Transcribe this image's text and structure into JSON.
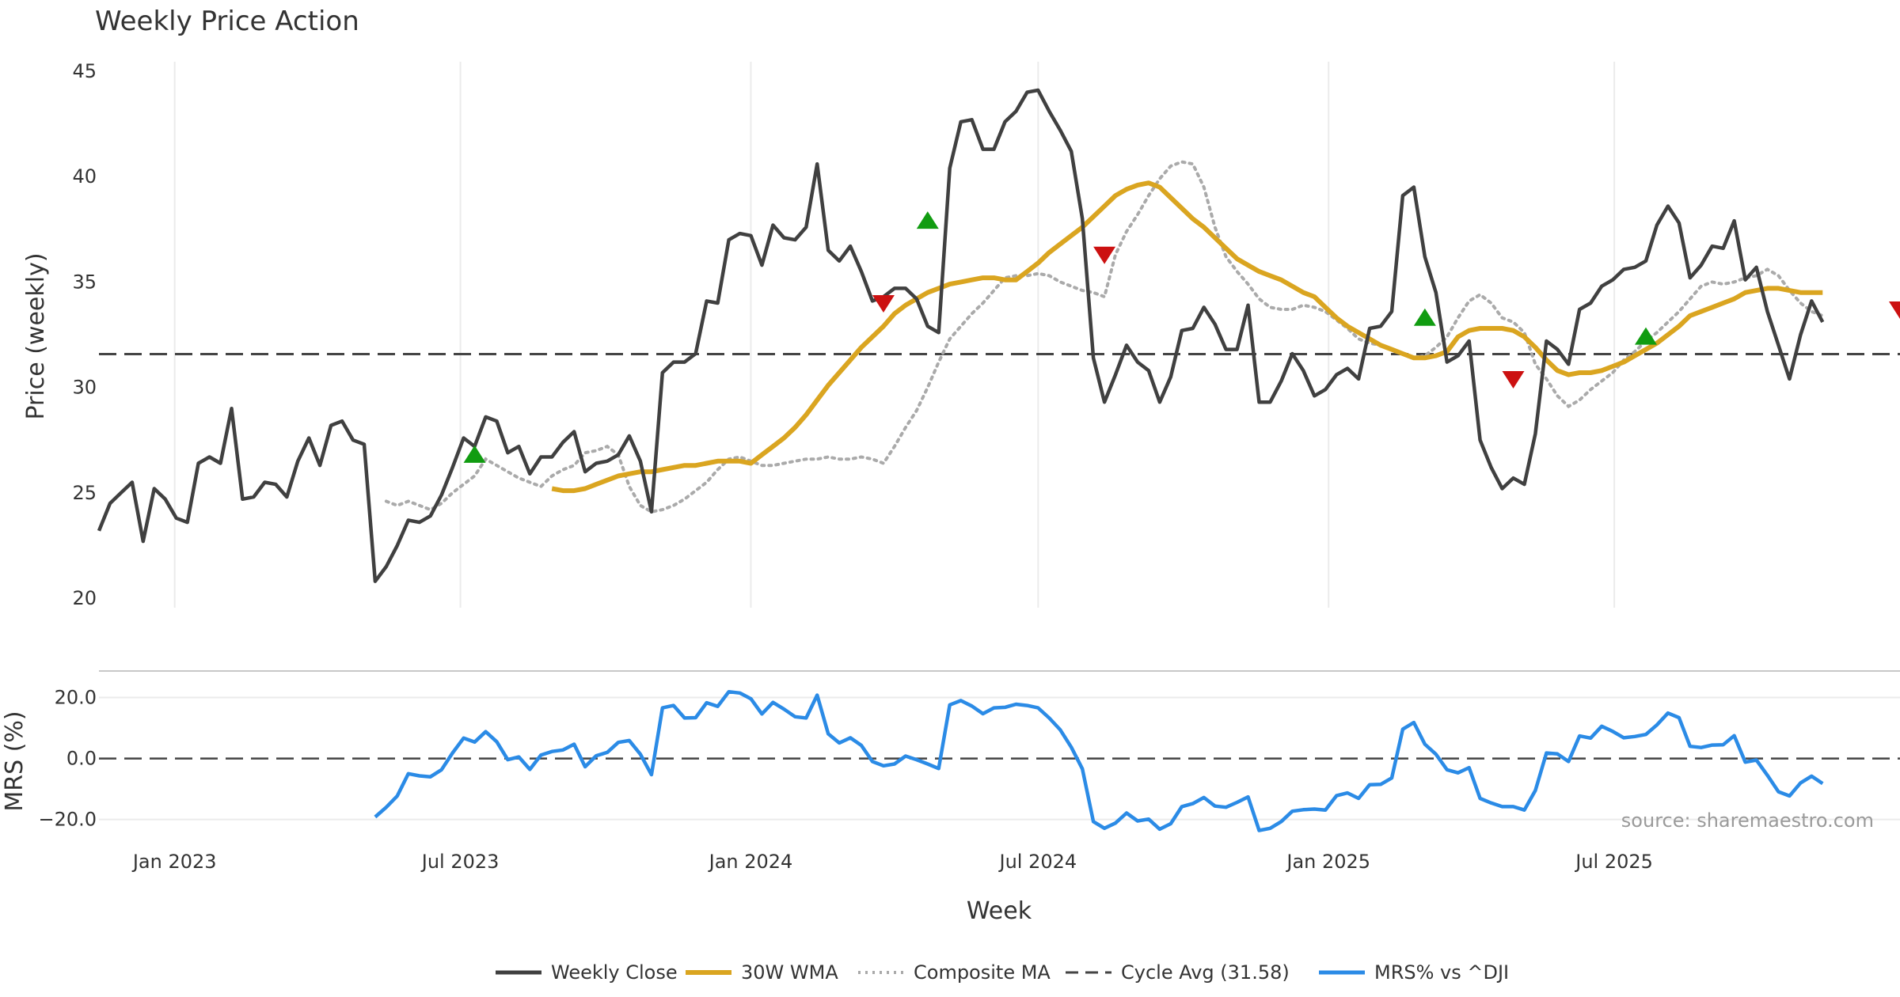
{
  "chart_data": {
    "type": "line",
    "title": "Weekly Price Action",
    "xlabel": "Week",
    "xlim": [
      "2022-11-14",
      "2025-12-29"
    ],
    "x_ticks": [
      "2023-01-01",
      "2023-07-01",
      "2024-01-01",
      "2024-07-01",
      "2025-01-01",
      "2025-07-01"
    ],
    "x_tick_labels": [
      "Jan 2023",
      "Jul 2023",
      "Jan 2024",
      "Jul 2024",
      "Jan 2025",
      "Jul 2025"
    ],
    "source_note": "source: sharemaestro.com",
    "legend": [
      "Weekly Close",
      "30W WMA",
      "Composite MA",
      "Cycle Avg (31.58)",
      "MRS% vs ^DJI"
    ],
    "colors": {
      "close": "#404040",
      "wma": "#daa520",
      "composite": "#aaaaaa",
      "cycle": "#444444",
      "mrs": "#2b8be6",
      "buy": "#119c11",
      "sell": "#cc1111",
      "grid": "#ebebeb",
      "separator": "#c8c8c8"
    },
    "price_panel": {
      "ylabel": "Price (weekly)",
      "ylim": [
        20,
        45
      ],
      "y_ticks": [
        20,
        25,
        30,
        35,
        40,
        45
      ],
      "y_tick_labels": [
        "20",
        "25",
        "30",
        "35",
        "40",
        "45"
      ],
      "cycle_avg": 31.58,
      "start_date": "2022-11-14",
      "weekly_close": [
        23.2,
        24.5,
        25.0,
        25.5,
        22.7,
        25.2,
        24.7,
        23.8,
        23.6,
        26.4,
        26.7,
        26.4,
        29.0,
        24.7,
        24.8,
        25.5,
        25.4,
        24.8,
        26.5,
        27.6,
        26.3,
        28.2,
        28.4,
        27.5,
        27.3,
        20.8,
        21.5,
        22.5,
        23.7,
        23.6,
        23.9,
        24.9,
        26.2,
        27.6,
        27.2,
        28.6,
        28.4,
        26.9,
        27.2,
        25.9,
        26.7,
        26.7,
        27.4,
        27.9,
        26.0,
        26.4,
        26.5,
        26.8,
        27.7,
        26.5,
        24.1,
        30.7,
        31.2,
        31.2,
        31.6,
        34.1,
        34.0,
        37.0,
        37.3,
        37.2,
        35.8,
        37.7,
        37.1,
        37.0,
        37.6,
        40.6,
        36.5,
        36.0,
        36.7,
        35.5,
        34.1,
        34.3,
        34.7,
        34.7,
        34.2,
        32.9,
        32.6,
        40.4,
        42.6,
        42.7,
        41.3,
        41.3,
        42.6,
        43.1,
        44.0,
        44.1,
        43.1,
        42.2,
        41.2,
        38.0,
        31.4,
        29.3,
        30.6,
        32.0,
        31.2,
        30.8,
        29.3,
        30.5,
        32.7,
        32.8,
        33.8,
        33.0,
        31.8,
        31.8,
        33.9,
        29.3,
        29.3,
        30.3,
        31.6,
        30.8,
        29.6,
        29.9,
        30.6,
        30.9,
        30.4,
        32.8,
        32.9,
        33.6,
        39.1,
        39.5,
        36.2,
        34.5,
        31.2,
        31.5,
        32.2,
        27.5,
        26.2,
        25.2,
        25.7,
        25.4,
        27.8,
        32.2,
        31.8,
        31.1,
        33.7,
        34.0,
        34.8,
        35.1,
        35.6,
        35.7,
        36.0,
        37.7,
        38.6,
        37.8,
        35.2,
        35.8,
        36.7,
        36.6,
        37.9,
        35.1,
        35.7,
        33.6,
        32.0,
        30.4,
        32.5,
        34.1,
        33.1
      ],
      "wma_30w": [
        25.2,
        25.1,
        25.1,
        25.2,
        25.4,
        25.6,
        25.8,
        25.9,
        26.0,
        26.0,
        26.1,
        26.2,
        26.3,
        26.3,
        26.4,
        26.5,
        26.5,
        26.5,
        26.4,
        26.8,
        27.2,
        27.6,
        28.1,
        28.7,
        29.4,
        30.1,
        30.7,
        31.3,
        31.9,
        32.4,
        32.9,
        33.5,
        33.9,
        34.2,
        34.5,
        34.7,
        34.9,
        35.0,
        35.1,
        35.2,
        35.2,
        35.1,
        35.1,
        35.5,
        35.9,
        36.4,
        36.8,
        37.2,
        37.6,
        38.1,
        38.6,
        39.1,
        39.4,
        39.6,
        39.7,
        39.5,
        39.0,
        38.5,
        38.0,
        37.6,
        37.1,
        36.6,
        36.1,
        35.8,
        35.5,
        35.3,
        35.1,
        34.8,
        34.5,
        34.3,
        33.8,
        33.3,
        32.9,
        32.6,
        32.3,
        32.0,
        31.8,
        31.6,
        31.4,
        31.4,
        31.5,
        31.7,
        32.4,
        32.7,
        32.8,
        32.8,
        32.8,
        32.7,
        32.4,
        31.9,
        31.3,
        30.8,
        30.6,
        30.7,
        30.7,
        30.8,
        31.0,
        31.2,
        31.5,
        31.8,
        32.1,
        32.5,
        32.9,
        33.4,
        33.6,
        33.8,
        34.0,
        34.2,
        34.5,
        34.6,
        34.7,
        34.7,
        34.6,
        34.5,
        34.5,
        34.5
      ],
      "composite_ma": [
        24.6,
        24.4,
        24.6,
        24.4,
        24.2,
        24.5,
        25.0,
        25.4,
        25.8,
        26.6,
        26.3,
        26.0,
        25.7,
        25.5,
        25.3,
        25.8,
        26.1,
        26.3,
        26.9,
        27.0,
        27.2,
        26.8,
        25.3,
        24.4,
        24.1,
        24.2,
        24.4,
        24.7,
        25.1,
        25.5,
        26.1,
        26.6,
        26.7,
        26.5,
        26.3,
        26.3,
        26.4,
        26.5,
        26.6,
        26.6,
        26.7,
        26.6,
        26.6,
        26.7,
        26.6,
        26.4,
        27.2,
        28.1,
        28.9,
        30.0,
        31.2,
        32.3,
        32.9,
        33.5,
        34.0,
        34.6,
        35.2,
        35.3,
        35.3,
        35.4,
        35.3,
        35.0,
        34.8,
        34.6,
        34.5,
        34.3,
        36.3,
        37.4,
        38.2,
        39.1,
        39.9,
        40.5,
        40.7,
        40.6,
        39.5,
        37.6,
        36.2,
        35.5,
        34.9,
        34.2,
        33.8,
        33.7,
        33.7,
        33.9,
        33.8,
        33.6,
        33.2,
        32.8,
        32.3,
        32.1,
        32.0,
        31.8,
        31.6,
        31.4,
        31.5,
        31.9,
        32.4,
        33.3,
        34.1,
        34.4,
        34.0,
        33.3,
        33.1,
        32.6,
        31.1,
        30.4,
        29.6,
        29.1,
        29.4,
        29.9,
        30.3,
        30.7,
        31.3,
        31.7,
        32.2,
        32.6,
        33.1,
        33.6,
        34.2,
        34.8,
        35.0,
        34.9,
        35.0,
        35.2,
        35.3,
        35.6,
        35.3,
        34.6,
        34.0,
        33.6,
        33.4
      ],
      "buy_signals": [
        {
          "week": 34,
          "value": 26.8
        },
        {
          "week": 75,
          "value": 37.9
        },
        {
          "week": 120,
          "value": 33.3
        },
        {
          "week": 140,
          "value": 32.4
        }
      ],
      "sell_signals": [
        {
          "week": 71,
          "value": 34.0
        },
        {
          "week": 91,
          "value": 36.3
        },
        {
          "week": 128,
          "value": 30.4
        },
        {
          "week": 163,
          "value": 33.7
        }
      ]
    },
    "mrs_panel": {
      "ylabel": "MRS (%)",
      "ylim": [
        -24,
        23
      ],
      "y_ticks": [
        -20,
        0,
        20
      ],
      "y_tick_labels": [
        "−20.0",
        "0.0",
        "20.0"
      ],
      "start_week": 25,
      "values": [
        -19.2,
        -16.0,
        -12.3,
        -5.0,
        -5.7,
        -6.0,
        -3.7,
        1.8,
        6.7,
        5.4,
        8.8,
        5.5,
        -0.4,
        0.5,
        -3.6,
        1.1,
        2.3,
        2.8,
        4.7,
        -2.7,
        0.9,
        2.0,
        5.3,
        5.9,
        1.4,
        -5.3,
        16.6,
        17.4,
        13.3,
        13.4,
        18.3,
        17.1,
        21.9,
        21.5,
        19.6,
        14.6,
        18.4,
        16.2,
        13.7,
        13.3,
        20.8,
        8.1,
        5.1,
        6.8,
        4.3,
        -1.0,
        -2.4,
        -1.8,
        0.8,
        -0.4,
        -1.8,
        -3.3,
        17.6,
        19.0,
        17.2,
        14.7,
        16.6,
        16.8,
        17.8,
        17.4,
        16.6,
        13.3,
        9.4,
        3.7,
        -3.4,
        -20.7,
        -22.9,
        -21.2,
        -17.9,
        -20.5,
        -19.9,
        -23.2,
        -21.4,
        -15.8,
        -14.8,
        -12.8,
        -15.6,
        -16.0,
        -14.4,
        -12.6,
        -23.6,
        -22.9,
        -20.7,
        -17.3,
        -16.8,
        -16.6,
        -16.9,
        -12.2,
        -11.3,
        -13.1,
        -8.6,
        -8.5,
        -6.4,
        9.6,
        11.8,
        4.7,
        1.4,
        -3.7,
        -4.7,
        -3.0,
        -13.1,
        -14.6,
        -15.8,
        -15.8,
        -16.9,
        -10.5,
        1.8,
        1.5,
        -1.0,
        7.4,
        6.7,
        10.6,
        8.9,
        6.8,
        7.2,
        7.9,
        11.0,
        14.9,
        13.4,
        4.0,
        3.6,
        4.4,
        4.5,
        7.5,
        -1.2,
        -0.5,
        -5.5,
        -10.9,
        -12.3,
        -8.0,
        -5.8,
        -8.2
      ]
    }
  }
}
